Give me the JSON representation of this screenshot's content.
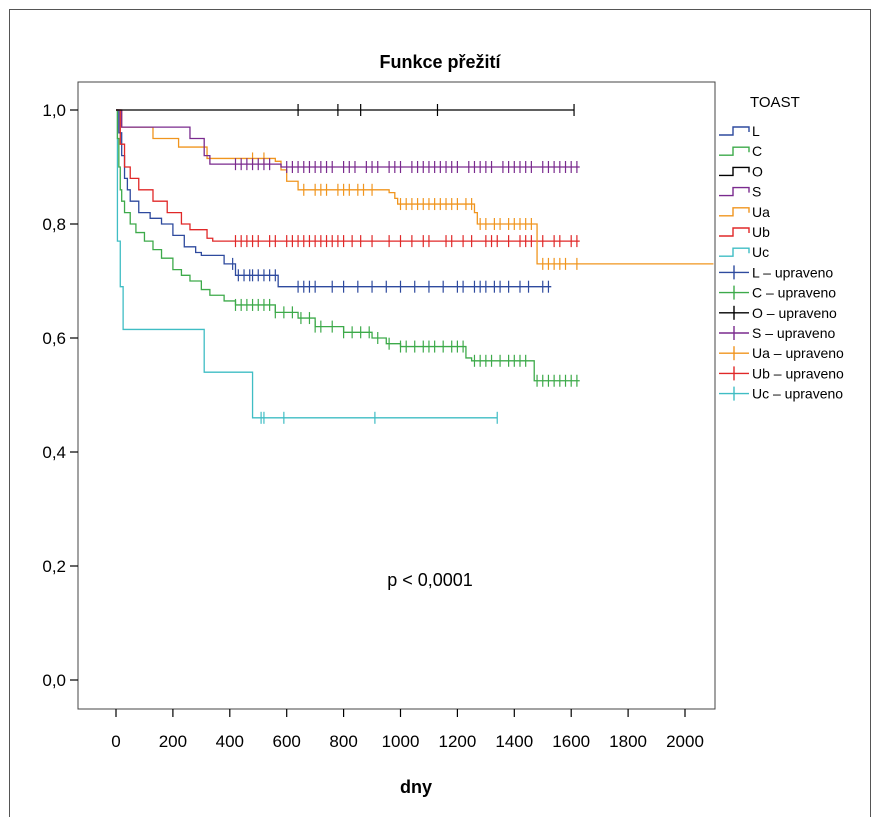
{
  "chart_data": {
    "type": "line",
    "title": "Funkce přežití",
    "xlabel": "dny",
    "ylabel": "",
    "xlim": [
      -100,
      2100
    ],
    "ylim": [
      -0.02,
      1.02
    ],
    "x_ticks": [
      0,
      200,
      400,
      600,
      800,
      1000,
      1200,
      1400,
      1600,
      1800,
      2000
    ],
    "y_ticks": [
      0.0,
      0.2,
      0.4,
      0.6,
      0.8,
      1.0
    ],
    "y_tick_labels": [
      "0,0",
      "0,2",
      "0,4",
      "0,6",
      "0,8",
      "1,0"
    ],
    "annotation": "p < 0,0001",
    "legend": {
      "title": "TOAST",
      "placement": "right",
      "entries": [
        "L",
        "C",
        "O",
        "S",
        "Ua",
        "Ub",
        "Uc",
        "L – upraveno",
        "C – upraveno",
        "O – upraveno",
        "S – upraveno",
        "Ua – upraveno",
        "Ub – upraveno",
        "Uc – upraveno"
      ]
    },
    "colors": {
      "L": "#2e4a9e",
      "C": "#3daa4a",
      "O": "#000000",
      "S": "#7a2a8e",
      "Ua": "#f0951e",
      "Ub": "#e02828",
      "Uc": "#3fbdc4"
    },
    "series": [
      {
        "name": "L",
        "steps": [
          [
            0,
            1.0
          ],
          [
            10,
            0.96
          ],
          [
            20,
            0.92
          ],
          [
            30,
            0.88
          ],
          [
            40,
            0.86
          ],
          [
            50,
            0.84
          ],
          [
            80,
            0.82
          ],
          [
            120,
            0.81
          ],
          [
            160,
            0.8
          ],
          [
            200,
            0.78
          ],
          [
            240,
            0.76
          ],
          [
            280,
            0.75
          ],
          [
            300,
            0.745
          ],
          [
            380,
            0.73
          ],
          [
            420,
            0.71
          ],
          [
            570,
            0.69
          ],
          [
            1530,
            0.69
          ]
        ],
        "censored": [
          410,
          430,
          450,
          470,
          480,
          500,
          520,
          540,
          560,
          640,
          660,
          680,
          700,
          760,
          800,
          850,
          900,
          950,
          1000,
          1050,
          1100,
          1150,
          1200,
          1220,
          1260,
          1280,
          1300,
          1330,
          1350,
          1380,
          1420,
          1450,
          1500,
          1520
        ]
      },
      {
        "name": "C",
        "steps": [
          [
            0,
            1.0
          ],
          [
            5,
            0.95
          ],
          [
            10,
            0.9
          ],
          [
            15,
            0.86
          ],
          [
            20,
            0.84
          ],
          [
            30,
            0.82
          ],
          [
            50,
            0.8
          ],
          [
            70,
            0.785
          ],
          [
            100,
            0.77
          ],
          [
            130,
            0.755
          ],
          [
            160,
            0.74
          ],
          [
            200,
            0.72
          ],
          [
            230,
            0.71
          ],
          [
            260,
            0.7
          ],
          [
            300,
            0.685
          ],
          [
            330,
            0.675
          ],
          [
            380,
            0.665
          ],
          [
            420,
            0.658
          ],
          [
            560,
            0.645
          ],
          [
            640,
            0.635
          ],
          [
            700,
            0.62
          ],
          [
            800,
            0.61
          ],
          [
            900,
            0.6
          ],
          [
            950,
            0.59
          ],
          [
            1000,
            0.585
          ],
          [
            1230,
            0.565
          ],
          [
            1250,
            0.56
          ],
          [
            1470,
            0.525
          ],
          [
            1630,
            0.525
          ]
        ],
        "censored": [
          420,
          440,
          460,
          480,
          500,
          520,
          540,
          560,
          590,
          620,
          650,
          680,
          700,
          720,
          760,
          800,
          830,
          860,
          890,
          920,
          960,
          1000,
          1020,
          1050,
          1080,
          1100,
          1120,
          1150,
          1180,
          1200,
          1220,
          1260,
          1280,
          1300,
          1320,
          1350,
          1380,
          1400,
          1420,
          1440,
          1480,
          1500,
          1520,
          1540,
          1560,
          1580,
          1600,
          1620
        ]
      },
      {
        "name": "O",
        "steps": [
          [
            0,
            1.0
          ],
          [
            1610,
            1.0
          ]
        ],
        "censored": [
          640,
          780,
          860,
          1130,
          1610
        ]
      },
      {
        "name": "S",
        "steps": [
          [
            0,
            1.0
          ],
          [
            20,
            0.97
          ],
          [
            260,
            0.95
          ],
          [
            310,
            0.92
          ],
          [
            330,
            0.905
          ],
          [
            560,
            0.905
          ],
          [
            580,
            0.9
          ],
          [
            1630,
            0.9
          ]
        ],
        "censored": [
          420,
          440,
          460,
          480,
          500,
          520,
          540,
          600,
          620,
          640,
          660,
          680,
          700,
          720,
          740,
          760,
          800,
          820,
          840,
          880,
          900,
          920,
          960,
          980,
          1000,
          1040,
          1060,
          1080,
          1100,
          1120,
          1140,
          1160,
          1180,
          1200,
          1240,
          1260,
          1280,
          1300,
          1320,
          1360,
          1380,
          1400,
          1420,
          1440,
          1460,
          1500,
          1520,
          1540,
          1560,
          1580,
          1600,
          1620
        ]
      },
      {
        "name": "Ua",
        "steps": [
          [
            0,
            1.0
          ],
          [
            20,
            0.97
          ],
          [
            130,
            0.95
          ],
          [
            220,
            0.935
          ],
          [
            320,
            0.915
          ],
          [
            440,
            0.915
          ],
          [
            560,
            0.91
          ],
          [
            580,
            0.895
          ],
          [
            600,
            0.875
          ],
          [
            640,
            0.86
          ],
          [
            960,
            0.855
          ],
          [
            980,
            0.845
          ],
          [
            990,
            0.835
          ],
          [
            1260,
            0.82
          ],
          [
            1270,
            0.8
          ],
          [
            1470,
            0.8
          ],
          [
            1480,
            0.73
          ],
          [
            2100,
            0.73
          ]
        ],
        "censored": [
          480,
          520,
          660,
          700,
          720,
          740,
          780,
          800,
          820,
          850,
          870,
          900,
          1000,
          1020,
          1040,
          1060,
          1080,
          1100,
          1120,
          1140,
          1160,
          1180,
          1200,
          1230,
          1250,
          1280,
          1300,
          1330,
          1350,
          1380,
          1400,
          1420,
          1440,
          1460,
          1500,
          1520,
          1540,
          1560,
          1580,
          1620
        ]
      },
      {
        "name": "Ub",
        "steps": [
          [
            0,
            1.0
          ],
          [
            15,
            0.94
          ],
          [
            30,
            0.9
          ],
          [
            50,
            0.88
          ],
          [
            80,
            0.86
          ],
          [
            130,
            0.84
          ],
          [
            180,
            0.82
          ],
          [
            230,
            0.8
          ],
          [
            260,
            0.79
          ],
          [
            320,
            0.775
          ],
          [
            340,
            0.77
          ],
          [
            1630,
            0.77
          ]
        ],
        "censored": [
          420,
          440,
          460,
          480,
          500,
          540,
          560,
          600,
          620,
          640,
          660,
          680,
          700,
          720,
          740,
          760,
          780,
          800,
          830,
          860,
          900,
          960,
          1000,
          1040,
          1080,
          1100,
          1160,
          1180,
          1220,
          1250,
          1300,
          1320,
          1340,
          1380,
          1420,
          1440,
          1460,
          1500,
          1540,
          1560,
          1600,
          1620
        ]
      },
      {
        "name": "Uc",
        "steps": [
          [
            0,
            1.0
          ],
          [
            5,
            0.77
          ],
          [
            15,
            0.69
          ],
          [
            25,
            0.615
          ],
          [
            300,
            0.615
          ],
          [
            310,
            0.54
          ],
          [
            470,
            0.54
          ],
          [
            480,
            0.46
          ],
          [
            1340,
            0.46
          ]
        ],
        "censored": [
          510,
          520,
          590,
          910,
          1340
        ]
      }
    ]
  }
}
